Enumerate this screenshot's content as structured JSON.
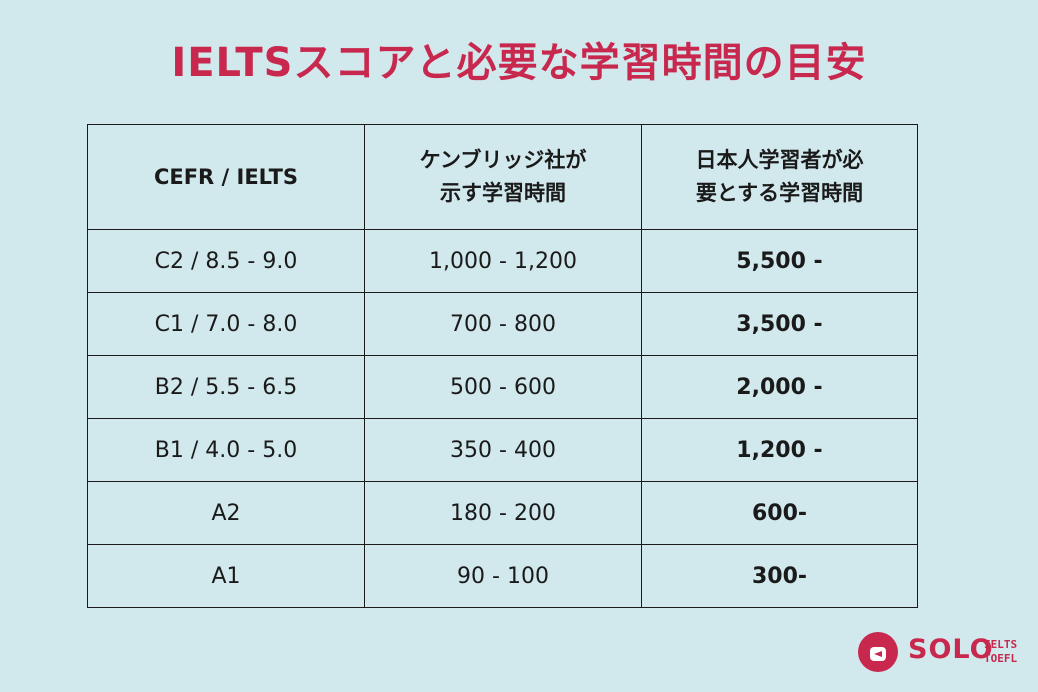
{
  "title": "IELTSスコアと必要な学習時間の目安",
  "table": {
    "headers": [
      "CEFR / IELTS",
      "ケンブリッジ社が\n示す学習時間",
      "日本人学習者が必\n要とする学習時間"
    ],
    "rows": [
      [
        "C2 / 8.5 - 9.0",
        "1,000 - 1,200",
        "5,500 -"
      ],
      [
        "C1 / 7.0 - 8.0",
        "700 - 800",
        "3,500 -"
      ],
      [
        "B2 / 5.5 - 6.5",
        "500 - 600",
        "2,000 -"
      ],
      [
        "B1 / 4.0 - 5.0",
        "350 - 400",
        "1,200 -"
      ],
      [
        "A2",
        "180 - 200",
        "600-"
      ],
      [
        "A1",
        "90 - 100",
        "300-"
      ]
    ]
  },
  "brand": {
    "name": "SOLO",
    "sub_line1": "IELTS",
    "sub_line2": "TOEFL",
    "logo_icon": "solo-logo-icon",
    "color": "#c8284e"
  },
  "colors": {
    "background": "#d1e8ec",
    "title": "#c8284e",
    "border": "#1a1a1a"
  }
}
